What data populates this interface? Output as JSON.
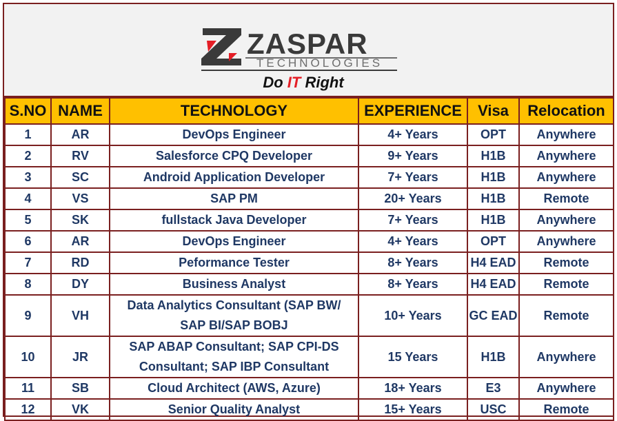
{
  "logo": {
    "brand": "ZASPAR",
    "subtitle": "TECHNOLOGIES",
    "tagline_pre": "Do ",
    "tagline_it": "IT",
    "tagline_post": " Right",
    "colors": {
      "dark": "#3a3a3a",
      "red": "#e41e26",
      "grey": "#6d6d6d"
    }
  },
  "table": {
    "headers": [
      "S.NO",
      "NAME",
      "TECHNOLOGY",
      "EXPERIENCE",
      "Visa",
      "Relocation"
    ],
    "header_bg": "#ffc000",
    "text_color": "#1f3864",
    "border_color": "#7a1f1f",
    "rows": [
      {
        "sno": "1",
        "name": "AR",
        "tech": [
          "DevOps Engineer"
        ],
        "exp": "4+ Years",
        "visa": "OPT",
        "reloc": "Anywhere"
      },
      {
        "sno": "2",
        "name": "RV",
        "tech": [
          "Salesforce CPQ Developer"
        ],
        "exp": "9+ Years",
        "visa": "H1B",
        "reloc": "Anywhere"
      },
      {
        "sno": "3",
        "name": "SC",
        "tech": [
          "Android Application Developer"
        ],
        "exp": "7+ Years",
        "visa": "H1B",
        "reloc": "Anywhere"
      },
      {
        "sno": "4",
        "name": "VS",
        "tech": [
          "SAP PM"
        ],
        "exp": "20+ Years",
        "visa": "H1B",
        "reloc": "Remote"
      },
      {
        "sno": "5",
        "name": "SK",
        "tech": [
          "fullstack Java Developer"
        ],
        "exp": "7+ Years",
        "visa": "H1B",
        "reloc": "Anywhere"
      },
      {
        "sno": "6",
        "name": "AR",
        "tech": [
          "DevOps Engineer"
        ],
        "exp": "4+ Years",
        "visa": "OPT",
        "reloc": "Anywhere"
      },
      {
        "sno": "7",
        "name": "RD",
        "tech": [
          "Peformance Tester"
        ],
        "exp": "8+ Years",
        "visa": "H4 EAD",
        "reloc": "Remote"
      },
      {
        "sno": "8",
        "name": "DY",
        "tech": [
          "Business Analyst"
        ],
        "exp": "8+ Years",
        "visa": "H4 EAD",
        "reloc": "Remote"
      },
      {
        "sno": "9",
        "name": "VH",
        "tech": [
          "Data Analytics Consultant (SAP BW/",
          "SAP BI/SAP BOBJ"
        ],
        "exp": "10+ Years",
        "visa": "GC EAD",
        "reloc": "Remote"
      },
      {
        "sno": "10",
        "name": "JR",
        "tech": [
          "SAP ABAP Consultant; SAP CPI-DS",
          "Consultant; SAP IBP Consultant"
        ],
        "exp": "15 Years",
        "visa": "H1B",
        "reloc": "Anywhere"
      },
      {
        "sno": "11",
        "name": "SB",
        "tech": [
          "Cloud Architect (AWS, Azure)"
        ],
        "exp": "18+ Years",
        "visa": "E3",
        "reloc": "Anywhere"
      },
      {
        "sno": "12",
        "name": "VK",
        "tech": [
          "Senior Quality Analyst"
        ],
        "exp": "15+ Years",
        "visa": "USC",
        "reloc": "Remote"
      }
    ]
  }
}
